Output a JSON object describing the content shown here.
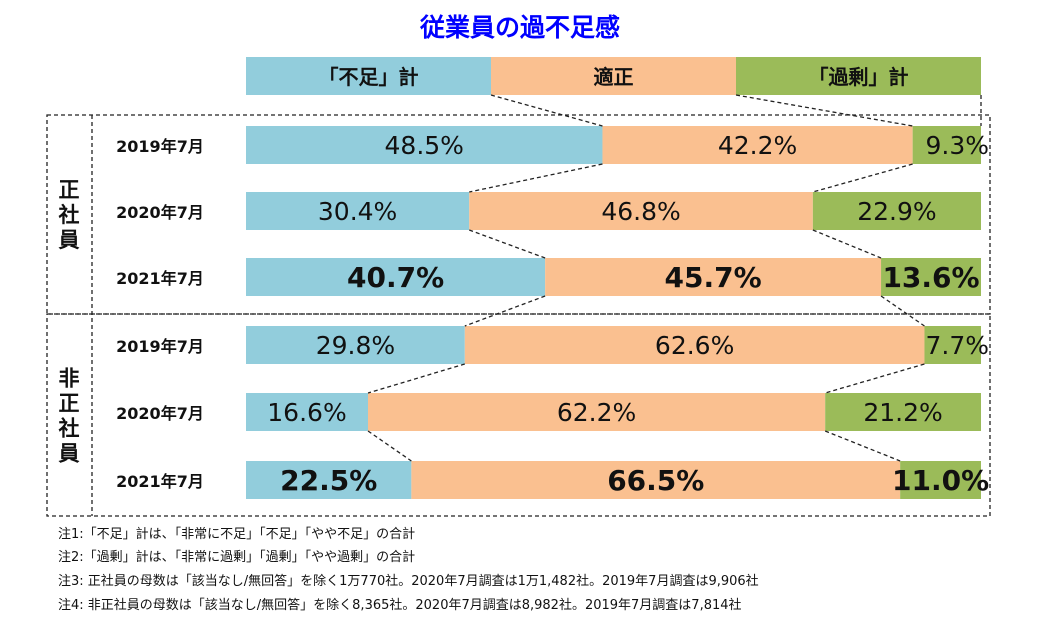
{
  "chart_data": {
    "type": "bar",
    "stacked": "100%",
    "orientation": "horizontal",
    "title": "従業員の過不足感",
    "legend": [
      "「不足」計",
      "適正",
      "「過剰」計"
    ],
    "colors": {
      "shortage": "#92CDDC",
      "proper": "#FAC090",
      "surplus": "#9BBB59",
      "title": "#0000FF"
    },
    "groups": [
      {
        "name": "正社員",
        "rows": [
          {
            "label": "2019年7月",
            "values": [
              48.5,
              42.2,
              9.3
            ],
            "texts": [
              "48.5%",
              "42.2%",
              "9.3%"
            ],
            "bold": false
          },
          {
            "label": "2020年7月",
            "values": [
              30.4,
              46.8,
              22.9
            ],
            "texts": [
              "30.4%",
              "46.8%",
              "22.9%"
            ],
            "bold": false
          },
          {
            "label": "2021年7月",
            "values": [
              40.7,
              45.7,
              13.6
            ],
            "texts": [
              "40.7%",
              "45.7%",
              "13.6%"
            ],
            "bold": true
          }
        ]
      },
      {
        "name": "非正社員",
        "rows": [
          {
            "label": "2019年7月",
            "values": [
              29.8,
              62.6,
              7.7
            ],
            "texts": [
              "29.8%",
              "62.6%",
              "7.7%"
            ],
            "bold": false
          },
          {
            "label": "2020年7月",
            "values": [
              16.6,
              62.2,
              21.2
            ],
            "texts": [
              "16.6%",
              "62.2%",
              "21.2%"
            ],
            "bold": false
          },
          {
            "label": "2021年7月",
            "values": [
              22.5,
              66.5,
              11.0
            ],
            "texts": [
              "22.5%",
              "66.5%",
              "11.0%"
            ],
            "bold": true
          }
        ]
      }
    ]
  },
  "notes": [
    "注1:「不足」計は、「非常に不足」「不足」「やや不足」の合計",
    "注2:「過剰」計は、「非常に過剰」「過剰」「やや過剰」の合計",
    "注3: 正社員の母数は「該当なし/無回答」を除く1万770社。2020年7月調査は1万1,482社。2019年7月調査は9,906社",
    "注4: 非正社員の母数は「該当なし/無回答」を除く8,365社。2020年7月調査は8,982社。2019年7月調査は7,814社"
  ]
}
